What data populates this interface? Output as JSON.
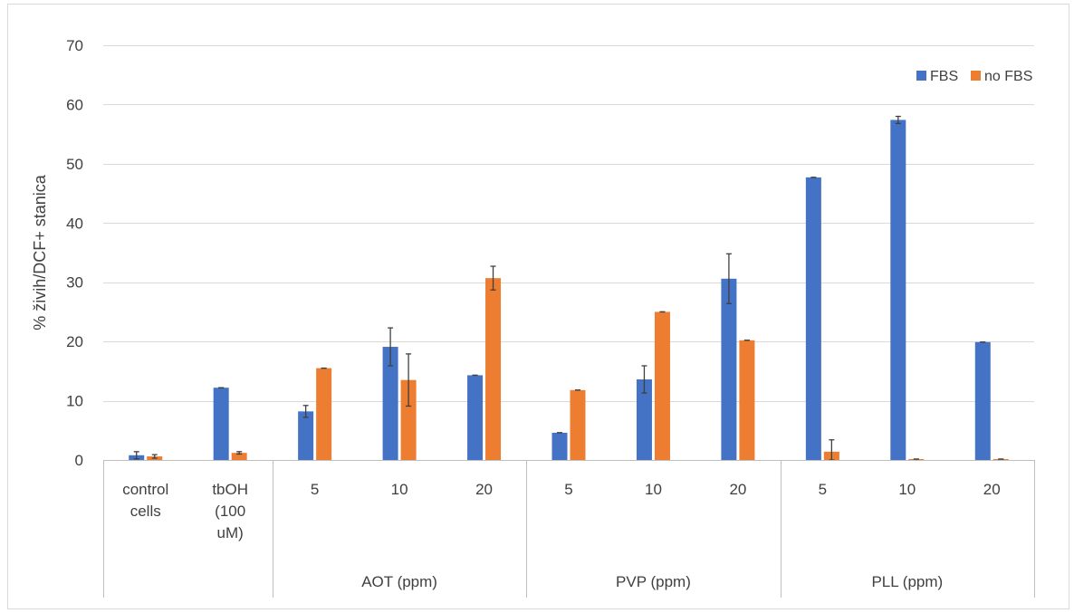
{
  "chart_data": {
    "type": "bar",
    "title": "",
    "ylabel": "% živih/DCF+ stanica",
    "xlabel": "",
    "ylim": [
      0,
      70
    ],
    "yticks": [
      0,
      10,
      20,
      30,
      40,
      50,
      60,
      70
    ],
    "grid": true,
    "legend_position": "top-right",
    "categories": [
      {
        "label_lines": [
          "control",
          "cells"
        ],
        "group": ""
      },
      {
        "label_lines": [
          "tbOH",
          "(100",
          "uM)"
        ],
        "group": ""
      },
      {
        "label_lines": [
          "5"
        ],
        "group": "AOT (ppm)"
      },
      {
        "label_lines": [
          "10"
        ],
        "group": "AOT (ppm)"
      },
      {
        "label_lines": [
          "20"
        ],
        "group": "AOT (ppm)"
      },
      {
        "label_lines": [
          "5"
        ],
        "group": "PVP (ppm)"
      },
      {
        "label_lines": [
          "10"
        ],
        "group": "PVP (ppm)"
      },
      {
        "label_lines": [
          "20"
        ],
        "group": "PVP (ppm)"
      },
      {
        "label_lines": [
          "5"
        ],
        "group": "PLL (ppm)"
      },
      {
        "label_lines": [
          "10"
        ],
        "group": "PLL (ppm)"
      },
      {
        "label_lines": [
          "20"
        ],
        "group": "PLL (ppm)"
      }
    ],
    "groups": [
      {
        "label": "",
        "start": 0,
        "end": 2
      },
      {
        "label": "AOT (ppm)",
        "start": 2,
        "end": 5
      },
      {
        "label": "PVP (ppm)",
        "start": 5,
        "end": 8
      },
      {
        "label": "PLL (ppm)",
        "start": 8,
        "end": 11
      }
    ],
    "series": [
      {
        "name": "FBS",
        "color": "#4472c4",
        "values": [
          0.8,
          12.2,
          8.2,
          19.1,
          14.3,
          4.6,
          13.6,
          30.6,
          47.7,
          57.4,
          19.9
        ],
        "errors": [
          0.6,
          0,
          1.0,
          3.2,
          0,
          0,
          2.3,
          4.2,
          0,
          0.6,
          0
        ]
      },
      {
        "name": "no FBS",
        "color": "#ed7d31",
        "values": [
          0.6,
          1.2,
          15.5,
          13.5,
          30.7,
          11.8,
          25.0,
          20.2,
          1.4,
          0.15,
          0.15
        ],
        "errors": [
          0.3,
          0.2,
          0,
          4.4,
          2.0,
          0,
          0,
          0,
          2.0,
          0,
          0
        ]
      }
    ]
  }
}
